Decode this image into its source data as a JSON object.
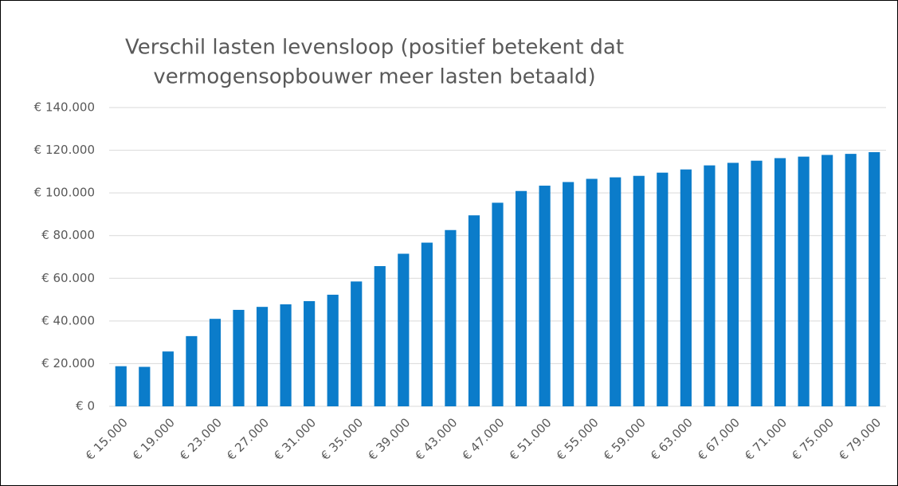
{
  "chart_data": {
    "type": "bar",
    "title": [
      "Verschil lasten levensloop (positief betekent dat",
      "vermogensopbouwer meer lasten betaald)"
    ],
    "categories": [
      "€ 15.000",
      null,
      "€ 19.000",
      null,
      "€ 23.000",
      null,
      "€ 27.000",
      null,
      "€ 31.000",
      null,
      "€ 35.000",
      null,
      "€ 39.000",
      null,
      "€ 43.000",
      null,
      "€ 47.000",
      null,
      "€ 51.000",
      null,
      "€ 55.000",
      null,
      "€ 59.000",
      null,
      "€ 63.000",
      null,
      "€ 67.000",
      null,
      "€ 71.000",
      null,
      "€ 75.000",
      null,
      "€ 79.000"
    ],
    "values": [
      18800,
      18500,
      25700,
      32900,
      41000,
      45200,
      46600,
      47800,
      49300,
      52300,
      58500,
      65700,
      71500,
      76700,
      82600,
      89500,
      95400,
      100900,
      103400,
      105100,
      106600,
      107300,
      108000,
      109500,
      111000,
      112900,
      114100,
      115100,
      116300,
      117000,
      117800,
      118300,
      119100
    ],
    "color": "#0b7cca",
    "ylim": [
      0,
      140000
    ],
    "yticks": [
      {
        "value": 0,
        "label": "€ 0"
      },
      {
        "value": 20000,
        "label": "€ 20.000"
      },
      {
        "value": 40000,
        "label": "€ 40.000"
      },
      {
        "value": 60000,
        "label": "€ 60.000"
      },
      {
        "value": 80000,
        "label": "€ 80.000"
      },
      {
        "value": 100000,
        "label": "€ 100.000"
      },
      {
        "value": 120000,
        "label": "€ 120.000"
      },
      {
        "value": 140000,
        "label": "€ 140.000"
      }
    ],
    "grid": true
  }
}
